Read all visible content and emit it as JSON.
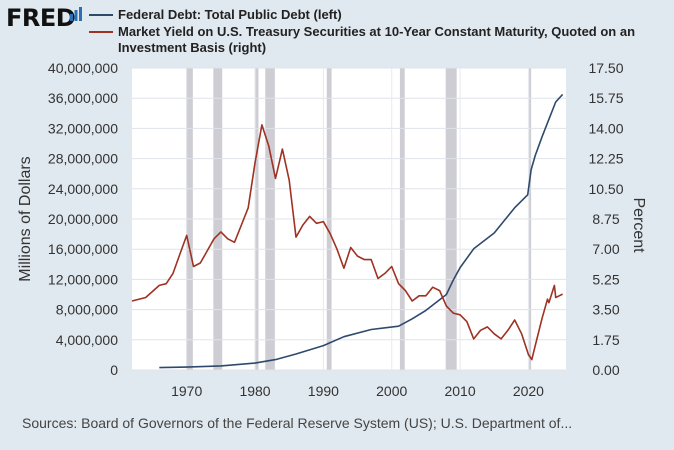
{
  "brand": "FRED",
  "chart_data": {
    "type": "line",
    "title": "",
    "series": [
      {
        "name": "Federal Debt: Total Public Debt (left)",
        "axis": "left",
        "color": "#2e4a6b",
        "x": [
          1966,
          1970,
          1975,
          1980,
          1983,
          1986,
          1990,
          1993,
          1997,
          2001,
          2003,
          2005,
          2008,
          2009,
          2010,
          2012,
          2015,
          2018,
          2019.9,
          2020.4,
          2021,
          2022,
          2023,
          2024,
          2025
        ],
        "y": [
          320000,
          380000,
          540000,
          910000,
          1380000,
          2120000,
          3230000,
          4410000,
          5370000,
          5800000,
          6780000,
          7900000,
          10000000,
          11900000,
          13560000,
          16050000,
          18150000,
          21500000,
          23200000,
          26500000,
          28400000,
          30900000,
          33200000,
          35500000,
          36500000
        ]
      },
      {
        "name": "Market Yield on U.S. Treasury Securities at 10-Year Constant Maturity, Quoted on an Investment Basis (right)",
        "axis": "right",
        "color": "#9e3223",
        "x": [
          1962,
          1964,
          1966,
          1967,
          1968,
          1969,
          1970,
          1971,
          1972,
          1973,
          1974,
          1975,
          1976,
          1977,
          1978,
          1979,
          1980,
          1981,
          1982,
          1983,
          1984,
          1985,
          1986,
          1987,
          1988,
          1989,
          1990,
          1991,
          1992,
          1993,
          1994,
          1995,
          1996,
          1997,
          1998,
          1999,
          2000,
          2001,
          2002,
          2003,
          2004,
          2005,
          2006,
          2007,
          2008,
          2009,
          2010,
          2011,
          2012,
          2013,
          2014,
          2015,
          2016,
          2017,
          2018,
          2019,
          2020,
          2020.5,
          2021,
          2022,
          2022.8,
          2023,
          2023.8,
          2024,
          2024.5,
          2025
        ],
        "y": [
          4.0,
          4.2,
          4.9,
          5.0,
          5.6,
          6.7,
          7.8,
          6.0,
          6.2,
          6.9,
          7.6,
          8.0,
          7.6,
          7.4,
          8.4,
          9.4,
          12.0,
          14.2,
          13.0,
          11.1,
          12.8,
          11.0,
          7.7,
          8.4,
          8.9,
          8.5,
          8.6,
          7.9,
          7.0,
          5.9,
          7.1,
          6.6,
          6.4,
          6.4,
          5.3,
          5.6,
          6.0,
          5.0,
          4.6,
          4.0,
          4.3,
          4.3,
          4.8,
          4.6,
          3.7,
          3.3,
          3.2,
          2.8,
          1.8,
          2.3,
          2.5,
          2.1,
          1.8,
          2.3,
          2.9,
          2.1,
          0.9,
          0.6,
          1.4,
          3.0,
          4.1,
          3.9,
          4.9,
          4.2,
          4.3,
          4.4
        ]
      }
    ],
    "left_axis": {
      "label": "Millions of Dollars",
      "ticks": [
        "40,000,000",
        "36,000,000",
        "32,000,000",
        "28,000,000",
        "24,000,000",
        "20,000,000",
        "16,000,000",
        "12,000,000",
        "8,000,000",
        "4,000,000",
        "0"
      ],
      "tick_values": [
        40000000,
        36000000,
        32000000,
        28000000,
        24000000,
        20000000,
        16000000,
        12000000,
        8000000,
        4000000,
        0
      ],
      "ylim": [
        0,
        40000000
      ]
    },
    "right_axis": {
      "label": "Percent",
      "ticks": [
        "17.50",
        "15.75",
        "14.00",
        "12.25",
        "10.50",
        "8.75",
        "7.00",
        "5.25",
        "3.50",
        "1.75",
        "0.00"
      ],
      "tick_values": [
        17.5,
        15.75,
        14.0,
        12.25,
        10.5,
        8.75,
        7.0,
        5.25,
        3.5,
        1.75,
        0.0
      ],
      "ylim": [
        0,
        17.5
      ]
    },
    "x_axis": {
      "label": "",
      "ticks": [
        "1970",
        "1980",
        "1990",
        "2000",
        "2010",
        "2020"
      ],
      "tick_values": [
        1970,
        1980,
        1990,
        2000,
        2010,
        2020
      ],
      "xlim": [
        1962,
        2025.5
      ]
    },
    "recessions": [
      [
        1969.9,
        1970.9
      ],
      [
        1973.9,
        1975.2
      ],
      [
        1980.0,
        1980.5
      ],
      [
        1981.5,
        1982.9
      ],
      [
        1990.5,
        1991.2
      ],
      [
        2001.2,
        2001.9
      ],
      [
        2007.9,
        2009.5
      ],
      [
        2020.1,
        2020.4
      ]
    ],
    "recession_color": "#cdcdd3",
    "grid": true,
    "legend": "top-left"
  },
  "footer": {
    "source": "Sources: Board of Governors of the Federal Reserve System (US); U.S. Department of..."
  }
}
